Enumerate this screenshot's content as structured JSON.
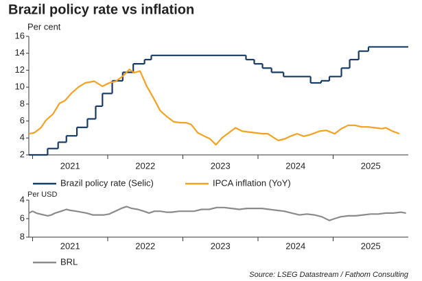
{
  "chart_data": [
    {
      "type": "line",
      "title": "Brazil policy rate vs inflation",
      "ylabel": "Per cent",
      "xlim": [
        2020.95,
        2026.0
      ],
      "xticks": [
        {
          "value": 2021.5,
          "label": "2021"
        },
        {
          "value": 2022.5,
          "label": "2022"
        },
        {
          "value": 2023.5,
          "label": "2023"
        },
        {
          "value": 2024.5,
          "label": "2024"
        },
        {
          "value": 2025.5,
          "label": "2025"
        }
      ],
      "ylim": [
        2,
        16
      ],
      "yticks": [
        2,
        4,
        6,
        8,
        10,
        12,
        14,
        16
      ],
      "grid": false,
      "legend": "bottom",
      "series": [
        {
          "name": "Brazil policy rate (Selic)",
          "color": "#173a64",
          "step": true,
          "x": [
            2020.95,
            2021.2,
            2021.34,
            2021.45,
            2021.59,
            2021.73,
            2021.84,
            2021.93,
            2022.06,
            2022.2,
            2022.34,
            2022.49,
            2022.58,
            2023.84,
            2023.95,
            2024.06,
            2024.18,
            2024.34,
            2024.7,
            2024.84,
            2024.95,
            2025.11,
            2025.22,
            2025.34,
            2025.47
          ],
          "values": [
            2,
            2.75,
            3.5,
            4.25,
            5.25,
            6.25,
            7.75,
            9.25,
            10.75,
            11.75,
            12.75,
            13.25,
            13.75,
            13.25,
            12.75,
            12.25,
            11.75,
            11.25,
            10.5,
            10.75,
            11.25,
            12.25,
            13.25,
            14.25,
            14.75
          ]
        },
        {
          "name": "IPCA inflation (YoY)",
          "color": "#f5a01e",
          "x": [
            2020.95,
            2021.02,
            2021.11,
            2021.18,
            2021.27,
            2021.36,
            2021.43,
            2021.52,
            2021.61,
            2021.7,
            2021.82,
            2021.93,
            2022.02,
            2022.11,
            2022.2,
            2022.29,
            2022.35,
            2022.43,
            2022.52,
            2022.61,
            2022.7,
            2022.79,
            2022.88,
            2022.97,
            2023.04,
            2023.11,
            2023.2,
            2023.29,
            2023.36,
            2023.44,
            2023.52,
            2023.61,
            2023.7,
            2023.79,
            2023.88,
            2023.97,
            2024.06,
            2024.13,
            2024.2,
            2024.27,
            2024.36,
            2024.43,
            2024.52,
            2024.61,
            2024.7,
            2024.82,
            2024.91,
            2025.02,
            2025.11,
            2025.2,
            2025.29,
            2025.38,
            2025.47,
            2025.56,
            2025.65,
            2025.7,
            2025.79,
            2025.88
          ],
          "values": [
            4.5,
            4.6,
            5.2,
            6.1,
            6.8,
            8.1,
            8.4,
            9.3,
            10.0,
            10.5,
            10.7,
            10.1,
            10.5,
            10.7,
            11.3,
            12.1,
            11.7,
            11.9,
            10.1,
            8.7,
            7.2,
            6.5,
            5.9,
            5.8,
            5.8,
            5.6,
            4.6,
            4.2,
            3.9,
            3.2,
            4.0,
            4.6,
            5.2,
            4.8,
            4.7,
            4.6,
            4.5,
            4.5,
            4.1,
            3.7,
            3.9,
            4.2,
            4.5,
            4.2,
            4.4,
            4.8,
            4.9,
            4.5,
            5.1,
            5.5,
            5.5,
            5.3,
            5.3,
            5.2,
            5.1,
            5.2,
            4.8,
            4.5
          ]
        }
      ]
    },
    {
      "type": "line",
      "ylabel": "Per USD",
      "source": "Source: LSEG Datastream / Fathom Consulting",
      "xlim": [
        2020.95,
        2026.0
      ],
      "xticks": [
        {
          "value": 2021.5,
          "label": "2021"
        },
        {
          "value": 2022.5,
          "label": "2022"
        },
        {
          "value": 2023.5,
          "label": "2023"
        },
        {
          "value": 2024.5,
          "label": "2024"
        },
        {
          "value": 2025.5,
          "label": "2025"
        }
      ],
      "ylim": [
        4,
        8
      ],
      "yticks": [
        4,
        6,
        8
      ],
      "reversed": true,
      "grid": false,
      "legend": "bottom",
      "series": [
        {
          "name": "BRL",
          "color": "#8a8a8a",
          "x": [
            2020.95,
            2021.0,
            2021.05,
            2021.1,
            2021.15,
            2021.2,
            2021.25,
            2021.3,
            2021.38,
            2021.45,
            2021.5,
            2021.58,
            2021.65,
            2021.72,
            2021.8,
            2021.88,
            2021.95,
            2022.02,
            2022.1,
            2022.18,
            2022.25,
            2022.32,
            2022.4,
            2022.48,
            2022.55,
            2022.62,
            2022.7,
            2022.78,
            2022.85,
            2022.95,
            2023.05,
            2023.15,
            2023.25,
            2023.35,
            2023.45,
            2023.55,
            2023.65,
            2023.75,
            2023.85,
            2023.95,
            2024.05,
            2024.15,
            2024.25,
            2024.35,
            2024.45,
            2024.55,
            2024.65,
            2024.75,
            2024.85,
            2024.95,
            2025.02,
            2025.1,
            2025.2,
            2025.3,
            2025.4,
            2025.5,
            2025.6,
            2025.7,
            2025.8,
            2025.9,
            2025.97
          ],
          "values": [
            5.4,
            5.2,
            5.4,
            5.5,
            5.6,
            5.7,
            5.6,
            5.4,
            5.2,
            5.0,
            5.1,
            5.2,
            5.3,
            5.4,
            5.6,
            5.6,
            5.6,
            5.5,
            5.2,
            4.9,
            4.7,
            4.9,
            5.0,
            5.2,
            5.4,
            5.2,
            5.2,
            5.3,
            5.3,
            5.2,
            5.2,
            5.2,
            5.0,
            5.0,
            4.8,
            4.8,
            4.9,
            5.0,
            4.9,
            4.9,
            4.9,
            5.0,
            5.1,
            5.2,
            5.4,
            5.6,
            5.5,
            5.6,
            5.8,
            6.2,
            6.0,
            5.8,
            5.7,
            5.7,
            5.6,
            5.5,
            5.5,
            5.4,
            5.4,
            5.3,
            5.4
          ]
        }
      ]
    }
  ]
}
